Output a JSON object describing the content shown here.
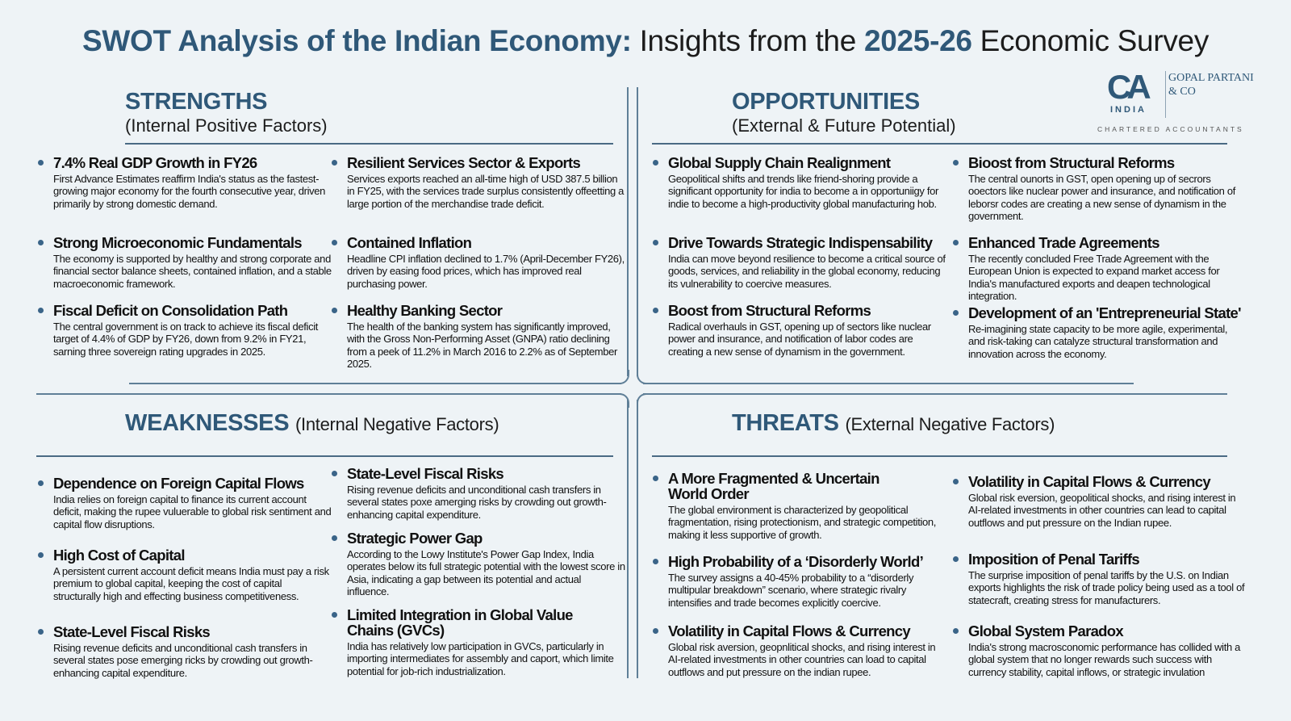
{
  "title": {
    "part1": "SWOT Analysis of the Indian Economy:",
    "part2": " Insights from the ",
    "part3": "2025-26",
    "part4": " Economic Survey"
  },
  "logo": {
    "mark": "CA",
    "country": "INDIA",
    "firm": "GOPAL PARTANI & CO",
    "tagline": "CHARTERED ACCOUNTANTS"
  },
  "colors": {
    "accent": "#2f5878",
    "bullet": "#3a6488",
    "background": "#eef3f6"
  },
  "strengths": {
    "heading": "STRENGTHS",
    "subtitle": "(Internal Positive Factors)",
    "items": [
      {
        "title": "7.4% Real GDP Growth in FY26",
        "body": "First Advance Estimates reaffirm India's status as the fastest-growing major economy for the fourth consecutive year, driven primarily by strong domestic demand."
      },
      {
        "title": "Strong Microeconomic Fundamentals",
        "body": "The economy is supported by healthy and strong corporate and financial sector balance sheets, contained inflation, and a stable macroeconomic framework."
      },
      {
        "title": "Fiscal Deficit on Consolidation Path",
        "body": "The central government is on track to achieve its fiscal deficit target of 4.4% of GDP by FY26, down from 9.2% in FY21, sarning three sovereign rating upgrades in 2025."
      },
      {
        "title": "Resilient Services Sector & Exports",
        "body": "Services exports reached an all-time high of USD 387.5 billion in FY25, with the services trade surplus consistently offeetting a large portion of the merchandise trade deficit."
      },
      {
        "title": "Contained Inflation",
        "body": "Headline CPI inflation declined to 1.7% (April-December FY26), driven by easing food prices, which has improved real purchasing power."
      },
      {
        "title": "Healthy Banking Sector",
        "body": "The health of the banking system has significantly improved, with the Gross Non-Performing Asset (GNPA) ratio declining from a peek of 11.2% in March 2016 to 2.2% as of September 2025."
      }
    ]
  },
  "opportunities": {
    "heading": "OPPORTUNITIES",
    "subtitle": "(External & Future Potential)",
    "items": [
      {
        "title": "Global Supply Chain Realignment",
        "body": "Geopolitical shifts and trends like friend-shoring provide a significant opportunity for india to become a in opportuniigy for indie to become a high-productivity global manufacturing hob."
      },
      {
        "title": "Drive Towards Strategic Indispensability",
        "body": "India can move beyond resilience to become a critical source of goods, services, and reliability in the global economy, reducing its vulnerability to coercive measures."
      },
      {
        "title": "Boost from Structural Reforms",
        "body": "Radical overhauls in GST, opening up of sectors like nuclear power and insurance, and notification of labor codes are creating a new sense of dynamism in the government."
      },
      {
        "title": "Bioost from Structural Reforms",
        "body": "The central ounorts in GST, open opening up of secrors ooectors like nuclear power and insurance, and notification of leborsr codes are creating a new sense of dynamism in the government."
      },
      {
        "title": "Enhanced Trade Agreements",
        "body": "The recently concluded Free Trade Agreement with the European Union is expected to expand market access for India's manufactured exports and deapen technological integration."
      },
      {
        "title": "Development of an 'Entrepreneurial State'",
        "body": "Re-imagining state capacity to be more agile, experimental, and risk-taking can catalyze structural transformation and innovation across the economy."
      }
    ]
  },
  "weaknesses": {
    "heading": "WEAKNESSES",
    "subtitle": "(Internal Negative Factors)",
    "items": [
      {
        "title": "Dependence on Foreign Capital Flows",
        "body": "India relies on foreign capital to finance its current account deficit, making the rupee vuluerable to global risk sentiment and capital flow disruptions."
      },
      {
        "title": "High Cost of Capital",
        "body": "A persistent current account deficit means India must pay a risk premium to global capital, keeping the cost of capital structurally high and effecting business competitiveness."
      },
      {
        "title": "State-Level Fiscal Risks",
        "body": "Rising revenue deficits and unconditional cash transfers in several states pose emerging ricks by crowding out growth-enhancing capital expenditure."
      },
      {
        "title": "State-Level Fiscal Risks",
        "body": "Rising revenue deficits and unconditional cash transfers in several states poxe amerging risks by crowding out growth-enhancing capital expenditure."
      },
      {
        "title": "Strategic Power Gap",
        "body": "According to the Lowy Institute's Power Gap Index, India operates below its full strategic potential with the lowest score in Asia, indicating a gap between its potential and actual influence."
      },
      {
        "title": "Limited Integration in Global Value Chains (GVCs)",
        "body": "India has relatively low participation in GVCs, particularly in importing intermediates for assembly and caport, which limite potential for job-rich industrialization."
      }
    ]
  },
  "threats": {
    "heading": "THREATS",
    "subtitle": "(External Negative Factors)",
    "items": [
      {
        "title": "A More Fragmented & Uncertain World Order",
        "body": "The global environment is characterized by geopolitical fragmentation, rising protectionism, and strategic competition, making it less supportive of growth."
      },
      {
        "title": "High Probability of a ‘Disorderly World’",
        "body": "The survey assigns a 40-45% probability to a “disorderly multipular breakdown” scenario, where strategic rivalry intensifies and trade becomes explicitly coercive."
      },
      {
        "title": "Volatility in Capital Flows & Currency",
        "body": "Global risk aversion, geopnlitical shocks, and rising interest in AI-related investments in other countries can load to capital outflows and put pressure on the indian rupee."
      },
      {
        "title": "Volatility in Capital Flows & Currency",
        "body": "Global risk eversion, geopolitical shocks, and rising interest in AI-related investments in other countries can lead to capital outflows and put pressure on the Indian rupee."
      },
      {
        "title": "Imposition of Penal Tariffs",
        "body": "The surprise imposition of penal tariffs by the U.S. on Indian exports highlights the risk of trade policy being used as a tool of statecraft, creating stress for manufacturers."
      },
      {
        "title": "Global System Paradox",
        "body": "India's strong macrosconomic performance has collided with a global system that no longer rewards such success with currency stability, capital inflows, or strategic invulation"
      }
    ]
  }
}
